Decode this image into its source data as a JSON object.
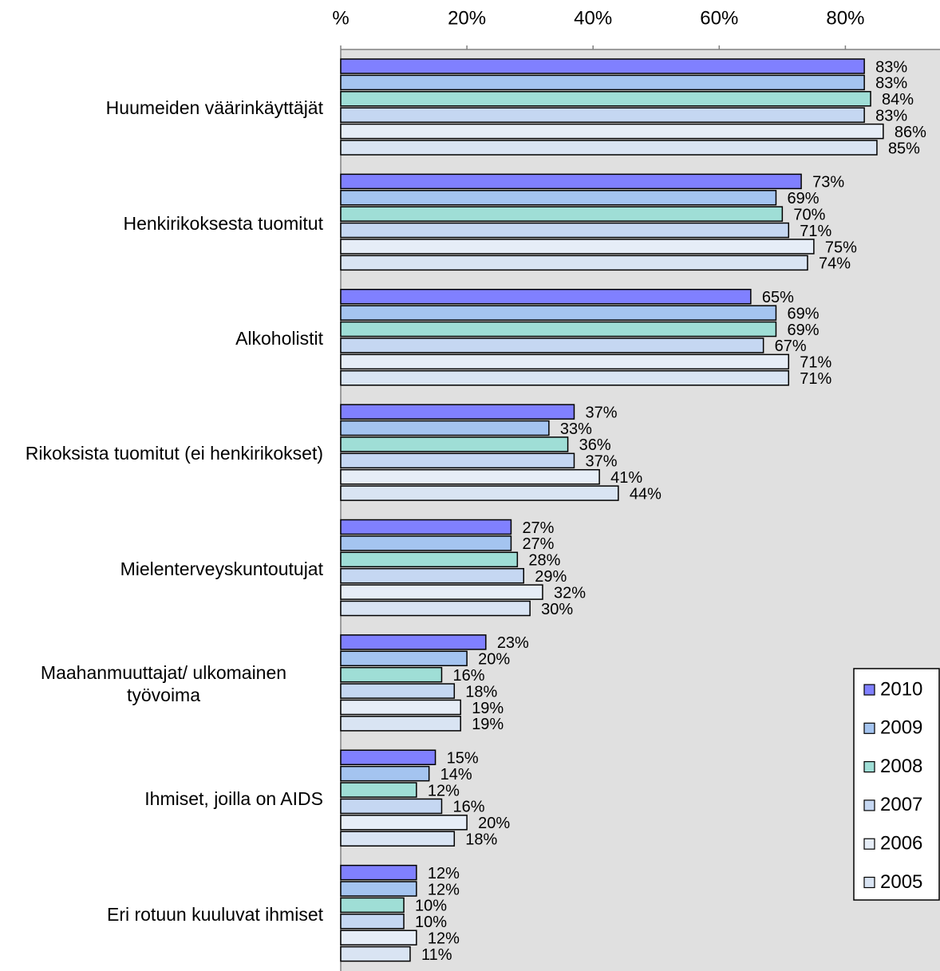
{
  "chart_data": {
    "type": "hbar",
    "categories": [
      "Huumeiden väärinkäyttäjät",
      "Henkirikoksesta tuomitut",
      "Alkoholistit",
      "Rikoksista tuomitut (ei henkirikokset)",
      "Mielenterveyskuntoutujat",
      "Maahanmuuttajat/ ulkomainen työvoima",
      "Ihmiset, joilla on AIDS",
      "Eri rotuun kuuluvat ihmiset"
    ],
    "series": [
      {
        "name": "2010",
        "color": "#8080ff",
        "values": [
          83,
          73,
          65,
          37,
          27,
          23,
          15,
          12
        ],
        "value_labels": [
          "83%",
          "73%",
          "65%",
          "37%",
          "27%",
          "23%",
          "15%",
          "12%"
        ]
      },
      {
        "name": "2009",
        "color": "#a4c4f0",
        "values": [
          83,
          69,
          69,
          33,
          27,
          20,
          14,
          12
        ],
        "value_labels": [
          "83%",
          "69%",
          "69%",
          "33%",
          "27%",
          "20%",
          "14%",
          "12%"
        ]
      },
      {
        "name": "2008",
        "color": "#9fded6",
        "values": [
          84,
          70,
          69,
          36,
          28,
          16,
          12,
          10
        ],
        "value_labels": [
          "84%",
          "70%",
          "69%",
          "36%",
          "28%",
          "16%",
          "12%",
          "10%"
        ]
      },
      {
        "name": "2007",
        "color": "#c5d7f2",
        "values": [
          83,
          71,
          67,
          37,
          29,
          18,
          16,
          10
        ],
        "value_labels": [
          "83%",
          "71%",
          "67%",
          "37%",
          "29%",
          "18%",
          "16%",
          "10%"
        ]
      },
      {
        "name": "2006",
        "color": "#e6edf7",
        "values": [
          86,
          75,
          71,
          41,
          32,
          19,
          20,
          12
        ],
        "value_labels": [
          "86%",
          "75%",
          "71%",
          "41%",
          "32%",
          "19%",
          "20%",
          "12%"
        ]
      },
      {
        "name": "2005",
        "color": "#d9e4f3",
        "values": [
          85,
          74,
          71,
          44,
          30,
          19,
          18,
          11
        ],
        "value_labels": [
          "85%",
          "74%",
          "71%",
          "44%",
          "30%",
          "19%",
          "18%",
          "11%"
        ]
      }
    ],
    "xlim": [
      0,
      95
    ],
    "xticks": [
      {
        "value": 0,
        "label": "%"
      },
      {
        "value": 20,
        "label": "20%"
      },
      {
        "value": 40,
        "label": "40%"
      },
      {
        "value": 60,
        "label": "60%"
      },
      {
        "value": 80,
        "label": "80%"
      }
    ],
    "legend": "right"
  }
}
